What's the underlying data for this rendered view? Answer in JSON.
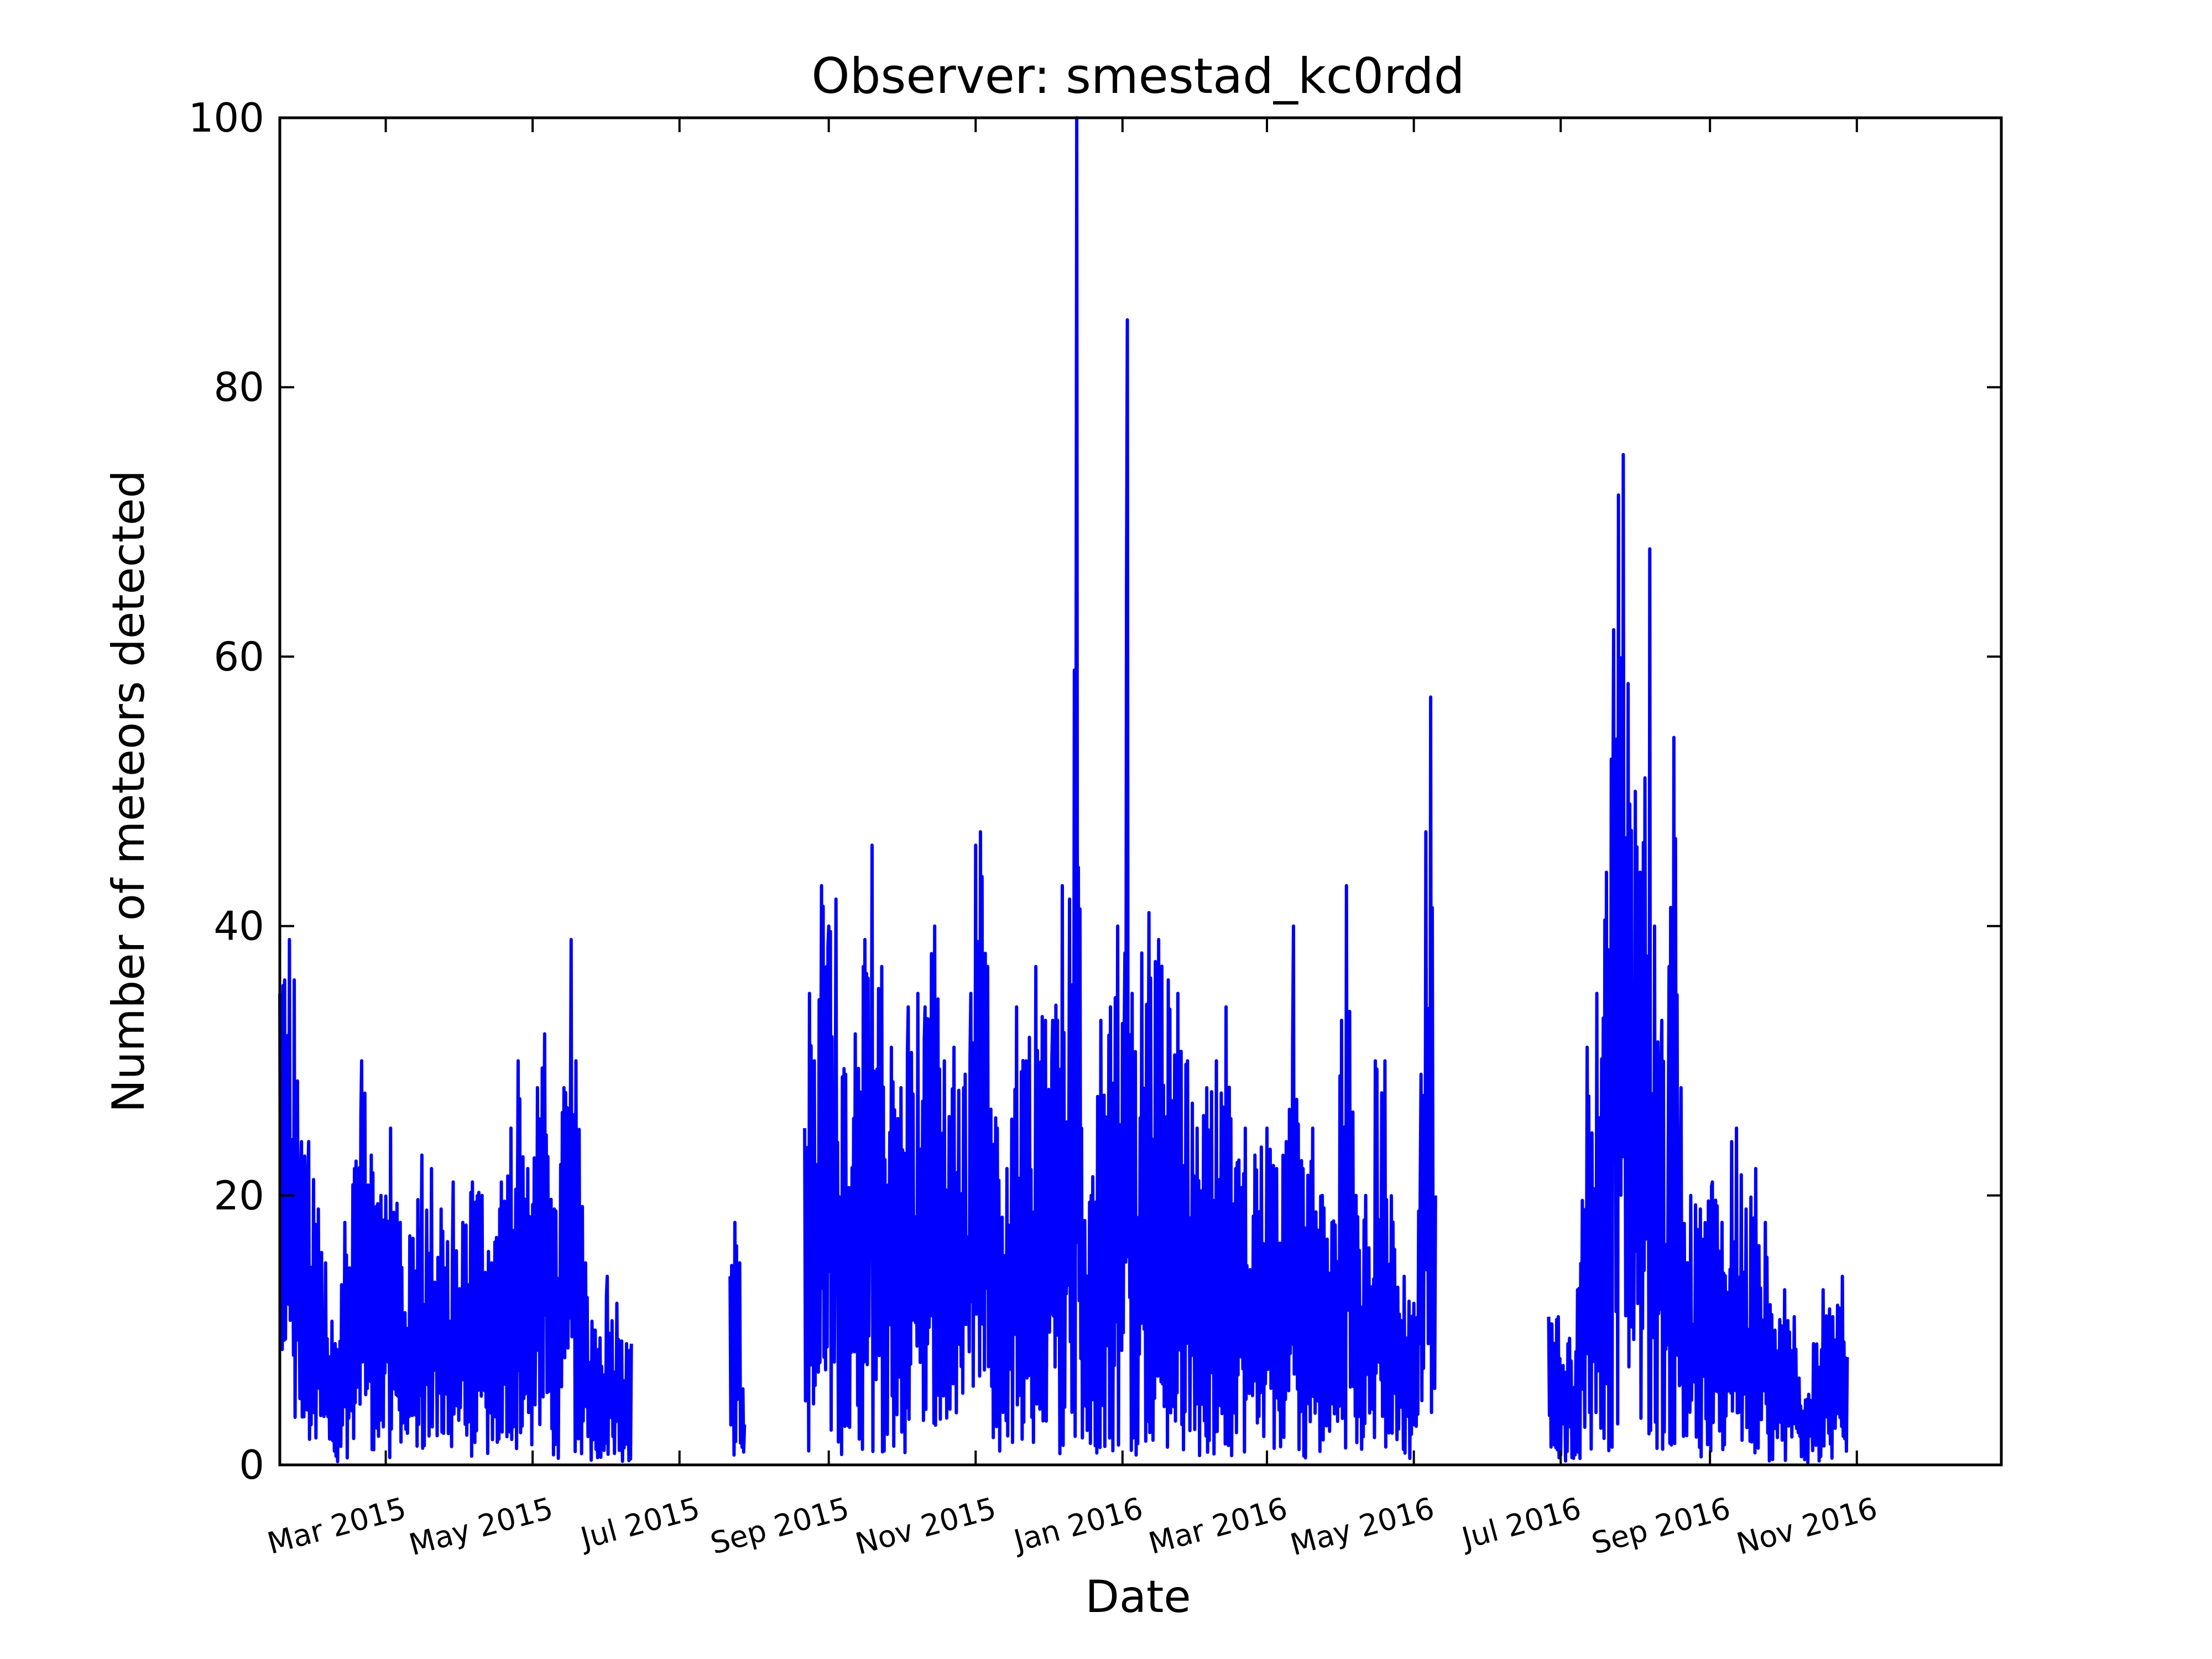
{
  "chart_data": {
    "type": "line",
    "title": "Observer: smestad_kc0rdd",
    "xlabel": "Date",
    "ylabel": "Number of meteors detected",
    "xlim": [
      "2015-01-16",
      "2016-12-31"
    ],
    "ylim": [
      0,
      100
    ],
    "yticks": [
      0,
      20,
      40,
      60,
      80,
      100
    ],
    "xticks": [
      {
        "date": "2015-03-01",
        "label": "Mar 2015"
      },
      {
        "date": "2015-05-01",
        "label": "May 2015"
      },
      {
        "date": "2015-07-01",
        "label": "Jul 2015"
      },
      {
        "date": "2015-09-01",
        "label": "Sep 2015"
      },
      {
        "date": "2015-11-01",
        "label": "Nov 2015"
      },
      {
        "date": "2016-01-01",
        "label": "Jan 2016"
      },
      {
        "date": "2016-03-01",
        "label": "Mar 2016"
      },
      {
        "date": "2016-05-01",
        "label": "May 2016"
      },
      {
        "date": "2016-07-01",
        "label": "Jul 2016"
      },
      {
        "date": "2016-09-01",
        "label": "Sep 2016"
      },
      {
        "date": "2016-11-01",
        "label": "Nov 2016"
      }
    ],
    "grid": false,
    "line_color": "#0000ff",
    "series_note_values_are_estimated_envelopes": true,
    "series": [
      {
        "name": "",
        "points": [
          [
            "2015-01-16",
            35
          ],
          [
            "2015-01-18",
            36
          ],
          [
            "2015-01-20",
            39
          ],
          [
            "2015-01-22",
            36
          ],
          [
            "2015-01-25",
            24
          ],
          [
            "2015-01-28",
            24
          ],
          [
            "2015-02-01",
            19
          ],
          [
            "2015-02-04",
            15
          ],
          [
            "2015-02-08",
            9
          ],
          [
            "2015-02-12",
            18
          ],
          [
            "2015-02-16",
            22
          ],
          [
            "2015-02-19",
            30
          ],
          [
            "2015-02-23",
            23
          ],
          [
            "2015-02-27",
            20
          ],
          [
            "2015-03-03",
            25
          ],
          [
            "2015-03-07",
            18
          ],
          [
            "2015-03-11",
            17
          ],
          [
            "2015-03-16",
            23
          ],
          [
            "2015-03-20",
            22
          ],
          [
            "2015-03-24",
            19
          ],
          [
            "2015-03-29",
            21
          ],
          [
            "2015-04-02",
            18
          ],
          [
            "2015-04-06",
            21
          ],
          [
            "2015-04-10",
            20
          ],
          [
            "2015-04-14",
            15
          ],
          [
            "2015-04-18",
            21
          ],
          [
            "2015-04-22",
            25
          ],
          [
            "2015-04-25",
            30
          ],
          [
            "2015-04-29",
            22
          ],
          [
            "2015-05-03",
            28
          ],
          [
            "2015-05-06",
            32
          ],
          [
            "2015-05-10",
            19
          ],
          [
            "2015-05-14",
            28
          ],
          [
            "2015-05-17",
            39
          ],
          [
            "2015-05-19",
            30
          ],
          [
            "2015-05-23",
            15
          ],
          [
            "2015-05-27",
            10
          ],
          [
            "2015-06-01",
            14
          ],
          [
            "2015-06-05",
            12
          ],
          [
            "2015-06-09",
            9
          ],
          [
            "2015-06-11",
            9
          ],
          [
            "2015-07-22",
            14
          ],
          [
            "2015-07-24",
            18
          ],
          [
            "2015-07-26",
            15
          ],
          [
            "2015-07-28",
            3
          ],
          [
            "2015-08-22",
            25
          ],
          [
            "2015-08-24",
            35
          ],
          [
            "2015-08-26",
            30
          ],
          [
            "2015-08-29",
            43
          ],
          [
            "2015-09-01",
            40
          ],
          [
            "2015-09-04",
            42
          ],
          [
            "2015-09-08",
            29
          ],
          [
            "2015-09-12",
            32
          ],
          [
            "2015-09-16",
            39
          ],
          [
            "2015-09-19",
            46
          ],
          [
            "2015-09-23",
            37
          ],
          [
            "2015-09-27",
            31
          ],
          [
            "2015-10-01",
            28
          ],
          [
            "2015-10-04",
            34
          ],
          [
            "2015-10-08",
            35
          ],
          [
            "2015-10-11",
            34
          ],
          [
            "2015-10-15",
            40
          ],
          [
            "2015-10-19",
            30
          ],
          [
            "2015-10-23",
            31
          ],
          [
            "2015-10-27",
            28
          ],
          [
            "2015-10-30",
            35
          ],
          [
            "2015-11-01",
            46
          ],
          [
            "2015-11-03",
            47
          ],
          [
            "2015-11-06",
            37
          ],
          [
            "2015-11-10",
            25
          ],
          [
            "2015-11-14",
            22
          ],
          [
            "2015-11-18",
            34
          ],
          [
            "2015-11-22",
            30
          ],
          [
            "2015-11-26",
            37
          ],
          [
            "2015-11-30",
            33
          ],
          [
            "2015-12-03",
            33
          ],
          [
            "2015-12-07",
            43
          ],
          [
            "2015-12-10",
            42
          ],
          [
            "2015-12-12",
            59
          ],
          [
            "2015-12-13",
            100
          ],
          [
            "2015-12-15",
            25
          ],
          [
            "2015-12-19",
            20
          ],
          [
            "2015-12-23",
            33
          ],
          [
            "2015-12-27",
            34
          ],
          [
            "2015-12-30",
            40
          ],
          [
            "2016-01-02",
            38
          ],
          [
            "2016-01-03",
            85
          ],
          [
            "2016-01-05",
            35
          ],
          [
            "2016-01-09",
            38
          ],
          [
            "2016-01-12",
            41
          ],
          [
            "2016-01-16",
            39
          ],
          [
            "2016-01-20",
            36
          ],
          [
            "2016-01-24",
            35
          ],
          [
            "2016-01-28",
            30
          ],
          [
            "2016-02-01",
            25
          ],
          [
            "2016-02-05",
            28
          ],
          [
            "2016-02-09",
            30
          ],
          [
            "2016-02-13",
            34
          ],
          [
            "2016-02-17",
            22
          ],
          [
            "2016-02-21",
            25
          ],
          [
            "2016-02-25",
            23
          ],
          [
            "2016-03-01",
            25
          ],
          [
            "2016-03-05",
            22
          ],
          [
            "2016-03-09",
            24
          ],
          [
            "2016-03-12",
            40
          ],
          [
            "2016-03-16",
            22
          ],
          [
            "2016-03-20",
            25
          ],
          [
            "2016-03-24",
            20
          ],
          [
            "2016-03-28",
            18
          ],
          [
            "2016-04-01",
            33
          ],
          [
            "2016-04-03",
            43
          ],
          [
            "2016-04-07",
            20
          ],
          [
            "2016-04-11",
            20
          ],
          [
            "2016-04-15",
            30
          ],
          [
            "2016-04-19",
            30
          ],
          [
            "2016-04-23",
            16
          ],
          [
            "2016-04-27",
            14
          ],
          [
            "2016-05-01",
            12
          ],
          [
            "2016-05-04",
            29
          ],
          [
            "2016-05-06",
            47
          ],
          [
            "2016-05-08",
            57
          ],
          [
            "2016-05-10",
            20
          ],
          [
            "2016-06-26",
            11
          ],
          [
            "2016-06-30",
            11
          ],
          [
            "2016-07-04",
            9
          ],
          [
            "2016-07-08",
            13
          ],
          [
            "2016-07-12",
            31
          ],
          [
            "2016-07-16",
            35
          ],
          [
            "2016-07-20",
            44
          ],
          [
            "2016-07-23",
            62
          ],
          [
            "2016-07-25",
            72
          ],
          [
            "2016-07-27",
            75
          ],
          [
            "2016-07-29",
            58
          ],
          [
            "2016-08-01",
            50
          ],
          [
            "2016-08-03",
            44
          ],
          [
            "2016-08-05",
            51
          ],
          [
            "2016-08-07",
            68
          ],
          [
            "2016-08-09",
            40
          ],
          [
            "2016-08-12",
            33
          ],
          [
            "2016-08-15",
            37
          ],
          [
            "2016-08-17",
            54
          ],
          [
            "2016-08-20",
            28
          ],
          [
            "2016-08-24",
            20
          ],
          [
            "2016-08-28",
            19
          ],
          [
            "2016-09-02",
            21
          ],
          [
            "2016-09-06",
            18
          ],
          [
            "2016-09-10",
            24
          ],
          [
            "2016-09-12",
            25
          ],
          [
            "2016-09-16",
            19
          ],
          [
            "2016-09-20",
            22
          ],
          [
            "2016-09-24",
            18
          ],
          [
            "2016-09-28",
            10
          ],
          [
            "2016-10-02",
            13
          ],
          [
            "2016-10-06",
            11
          ],
          [
            "2016-10-10",
            4
          ],
          [
            "2016-10-14",
            9
          ],
          [
            "2016-10-18",
            13
          ],
          [
            "2016-10-22",
            11
          ],
          [
            "2016-10-26",
            14
          ],
          [
            "2016-10-28",
            8
          ]
        ]
      }
    ]
  }
}
